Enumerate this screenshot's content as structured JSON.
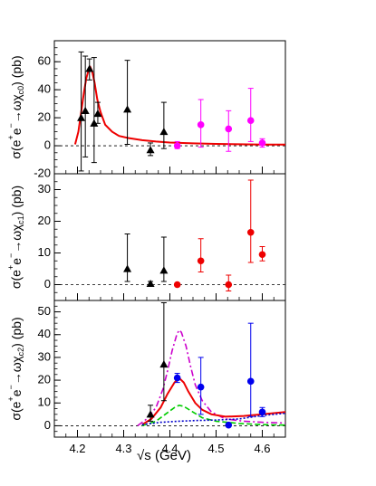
{
  "chart_data": [
    {
      "type": "scatter",
      "panel": "top",
      "ylabel": "σ(e⁺e⁻→ωχ_c0) (pb)",
      "xlim": [
        4.15,
        4.65
      ],
      "ylim": [
        -20,
        75
      ],
      "yticks": [
        -20,
        0,
        20,
        40,
        60
      ],
      "zero_line": "dashed",
      "series": [
        {
          "marker": "triangle",
          "color": "#000000",
          "points": [
            {
              "x": 4.208,
              "y": 20,
              "lo": -18,
              "hi": 67
            },
            {
              "x": 4.217,
              "y": 25,
              "lo": -8,
              "hi": 64
            },
            {
              "x": 4.226,
              "y": 55,
              "lo": 47,
              "hi": 62
            },
            {
              "x": 4.236,
              "y": 16,
              "lo": -12,
              "hi": 63
            },
            {
              "x": 4.244,
              "y": 23,
              "lo": 16,
              "hi": 31
            },
            {
              "x": 4.308,
              "y": 26,
              "lo": 1,
              "hi": 61
            },
            {
              "x": 4.358,
              "y": -3,
              "lo": -7,
              "hi": 2
            },
            {
              "x": 4.387,
              "y": 10,
              "lo": -2,
              "hi": 31
            }
          ]
        },
        {
          "marker": "circle",
          "color": "#ff00ff",
          "points": [
            {
              "x": 4.416,
              "y": 0,
              "lo": -2,
              "hi": 3
            },
            {
              "x": 4.467,
              "y": 15,
              "lo": -1,
              "hi": 33
            },
            {
              "x": 4.527,
              "y": 12,
              "lo": -4,
              "hi": 25
            },
            {
              "x": 4.575,
              "y": 18,
              "lo": 3,
              "hi": 41
            },
            {
              "x": 4.6,
              "y": 2,
              "lo": -1,
              "hi": 5
            }
          ]
        }
      ],
      "curves": [
        {
          "style": "solid",
          "color": "#ee0000",
          "points": [
            [
              4.195,
              1
            ],
            [
              4.202,
              10
            ],
            [
              4.208,
              24
            ],
            [
              4.214,
              38
            ],
            [
              4.219,
              48
            ],
            [
              4.224,
              54
            ],
            [
              4.228,
              56
            ],
            [
              4.232,
              53
            ],
            [
              4.237,
              45
            ],
            [
              4.243,
              33
            ],
            [
              4.25,
              24
            ],
            [
              4.26,
              15
            ],
            [
              4.275,
              10
            ],
            [
              4.29,
              7
            ],
            [
              4.31,
              5.5
            ],
            [
              4.34,
              4
            ],
            [
              4.37,
              3
            ],
            [
              4.4,
              2.3
            ],
            [
              4.45,
              1.7
            ],
            [
              4.5,
              1.3
            ],
            [
              4.55,
              1.1
            ],
            [
              4.6,
              0.9
            ],
            [
              4.65,
              0.8
            ]
          ]
        }
      ]
    },
    {
      "type": "scatter",
      "panel": "middle",
      "ylabel": "σ(e⁺e⁻→ωχ_c1) (pb)",
      "xlim": [
        4.15,
        4.65
      ],
      "ylim": [
        -5,
        35
      ],
      "yticks": [
        0,
        10,
        20,
        30
      ],
      "zero_line": "dashed",
      "series": [
        {
          "marker": "triangle",
          "color": "#000000",
          "points": [
            {
              "x": 4.308,
              "y": 5,
              "lo": 1,
              "hi": 16
            },
            {
              "x": 4.358,
              "y": 0.3,
              "lo": 0,
              "hi": 1
            },
            {
              "x": 4.387,
              "y": 4.5,
              "lo": 1,
              "hi": 15
            }
          ]
        },
        {
          "marker": "circle",
          "color": "#ee0000",
          "points": [
            {
              "x": 4.416,
              "y": 0,
              "lo": 0,
              "hi": 0
            },
            {
              "x": 4.467,
              "y": 7.5,
              "lo": 4,
              "hi": 14.5
            },
            {
              "x": 4.527,
              "y": 0,
              "lo": -2,
              "hi": 3
            },
            {
              "x": 4.575,
              "y": 16.5,
              "lo": 7,
              "hi": 33
            },
            {
              "x": 4.6,
              "y": 9.5,
              "lo": 7.5,
              "hi": 12
            }
          ]
        }
      ]
    },
    {
      "type": "scatter",
      "panel": "bottom",
      "ylabel": "σ(e⁺e⁻→ωχ_c2) (pb)",
      "xlabel": "√s (GeV)",
      "xlim": [
        4.15,
        4.65
      ],
      "xticks": [
        4.2,
        4.3,
        4.4,
        4.5,
        4.6
      ],
      "ylim": [
        -5,
        55
      ],
      "yticks": [
        0,
        10,
        20,
        30,
        40,
        50
      ],
      "zero_line": "dashed",
      "series": [
        {
          "marker": "triangle",
          "color": "#000000",
          "points": [
            {
              "x": 4.358,
              "y": 5,
              "lo": 2,
              "hi": 9
            },
            {
              "x": 4.387,
              "y": 27,
              "lo": 11,
              "hi": 54
            }
          ]
        },
        {
          "marker": "circle",
          "color": "#0000ee",
          "points": [
            {
              "x": 4.416,
              "y": 21,
              "lo": 19,
              "hi": 23
            },
            {
              "x": 4.467,
              "y": 17,
              "lo": 5,
              "hi": 30
            },
            {
              "x": 4.527,
              "y": 0.3,
              "lo": 0,
              "hi": 1
            },
            {
              "x": 4.575,
              "y": 19.5,
              "lo": 4,
              "hi": 45
            },
            {
              "x": 4.6,
              "y": 6,
              "lo": 4,
              "hi": 8
            }
          ]
        }
      ],
      "curves": [
        {
          "style": "dashdot",
          "color": "#cc00cc",
          "points": [
            [
              4.33,
              0
            ],
            [
              4.35,
              3
            ],
            [
              4.37,
              8
            ],
            [
              4.385,
              16
            ],
            [
              4.395,
              24
            ],
            [
              4.405,
              33
            ],
            [
              4.415,
              40
            ],
            [
              4.42,
              42
            ],
            [
              4.425,
              41
            ],
            [
              4.435,
              35
            ],
            [
              4.445,
              26
            ],
            [
              4.455,
              18
            ],
            [
              4.47,
              11
            ],
            [
              4.49,
              6
            ],
            [
              4.52,
              3
            ],
            [
              4.56,
              2
            ],
            [
              4.6,
              1.5
            ],
            [
              4.65,
              1.2
            ]
          ]
        },
        {
          "style": "solid",
          "color": "#ee0000",
          "points": [
            [
              4.34,
              0.5
            ],
            [
              4.36,
              3
            ],
            [
              4.38,
              8
            ],
            [
              4.395,
              14
            ],
            [
              4.41,
              19
            ],
            [
              4.42,
              21
            ],
            [
              4.43,
              19
            ],
            [
              4.44,
              15
            ],
            [
              4.455,
              10
            ],
            [
              4.47,
              7
            ],
            [
              4.49,
              5
            ],
            [
              4.52,
              4
            ],
            [
              4.56,
              4.3
            ],
            [
              4.6,
              5
            ],
            [
              4.65,
              6
            ]
          ]
        },
        {
          "style": "dashed",
          "color": "#00cc00",
          "points": [
            [
              4.34,
              0
            ],
            [
              4.37,
              2
            ],
            [
              4.39,
              5
            ],
            [
              4.41,
              8
            ],
            [
              4.42,
              9
            ],
            [
              4.43,
              8.5
            ],
            [
              4.45,
              6
            ],
            [
              4.47,
              3.5
            ],
            [
              4.5,
              2
            ],
            [
              4.55,
              1
            ],
            [
              4.6,
              0.5
            ],
            [
              4.65,
              0.3
            ]
          ]
        },
        {
          "style": "dotted",
          "color": "#0000cc",
          "points": [
            [
              4.34,
              0.5
            ],
            [
              4.38,
              1.5
            ],
            [
              4.42,
              2
            ],
            [
              4.46,
              2.3
            ],
            [
              4.5,
              2.5
            ],
            [
              4.55,
              3
            ],
            [
              4.6,
              4.5
            ],
            [
              4.65,
              5.5
            ]
          ]
        }
      ]
    }
  ]
}
